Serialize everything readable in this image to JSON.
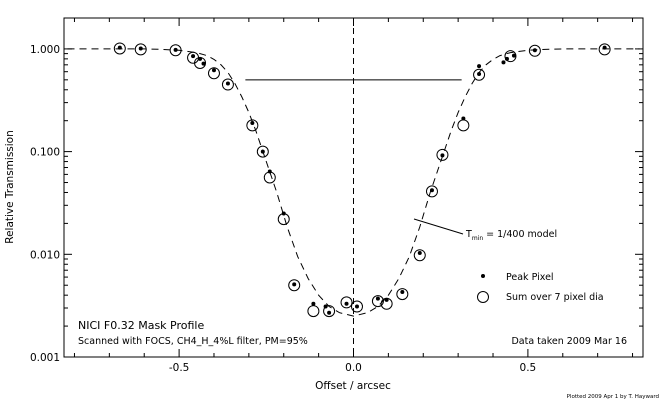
{
  "chart_data": {
    "type": "scatter",
    "title": "NICI F0.32 Mask Profile",
    "subtitle": "Scanned with FOCS, CH4_H_4%L filter, PM=95%",
    "note": "Data taken 2009 Mar 16",
    "credit": "Plotted 2009 Apr  1 by T. Hayward",
    "xlabel": "Offset / arcsec",
    "ylabel": "Relative Transmission",
    "xlim": [
      -0.83,
      0.83
    ],
    "ylim": [
      0.001,
      2.0
    ],
    "yscale": "log",
    "grid": false,
    "x_ticks": [
      {
        "value": -0.5,
        "label": "-0.5"
      },
      {
        "value": 0.0,
        "label": "0.0"
      },
      {
        "value": 0.5,
        "label": "0.5"
      }
    ],
    "y_ticks": [
      {
        "value": 1.0,
        "label": "1.000"
      },
      {
        "value": 0.1,
        "label": "0.100"
      },
      {
        "value": 0.01,
        "label": "0.010"
      },
      {
        "value": 0.001,
        "label": "0.001"
      }
    ],
    "legend": {
      "placement": "bottom-right",
      "entries": [
        {
          "name": "Peak Pixel",
          "marker": "dot"
        },
        {
          "name": "Sum over 7 pixel dia",
          "marker": "open-circle"
        }
      ]
    },
    "model_annotation": {
      "prefix": "T",
      "subscript": "min",
      "suffix": " = 1/400 model",
      "points_to": [
        0.33,
        0.02
      ]
    },
    "reference_lines": {
      "vertical_x": 0.0,
      "half_transmission_y": 0.5,
      "half_transmission_x_range": [
        -0.31,
        0.31
      ]
    },
    "series": [
      {
        "name": "Peak Pixel",
        "marker": "dot",
        "x": [
          -0.67,
          -0.61,
          -0.51,
          -0.46,
          -0.44,
          -0.43,
          -0.4,
          -0.36,
          -0.29,
          -0.26,
          -0.24,
          -0.2,
          -0.17,
          -0.115,
          -0.08,
          -0.07,
          -0.02,
          0.01,
          0.07,
          0.095,
          0.14,
          0.19,
          0.225,
          0.255,
          0.315,
          0.36,
          0.36,
          0.43,
          0.44,
          0.46,
          0.52,
          0.72
        ],
        "y": [
          1.03,
          1.01,
          0.98,
          0.85,
          0.8,
          0.72,
          0.62,
          0.46,
          0.19,
          0.1,
          0.064,
          0.025,
          0.0051,
          0.0033,
          0.0031,
          0.0027,
          0.0033,
          0.0031,
          0.0037,
          0.0036,
          0.0043,
          0.0103,
          0.042,
          0.092,
          0.21,
          0.57,
          0.68,
          0.74,
          0.8,
          0.86,
          0.97,
          1.03
        ]
      },
      {
        "name": "Sum over 7 pixel dia",
        "marker": "open-circle",
        "x": [
          -0.67,
          -0.61,
          -0.51,
          -0.46,
          -0.44,
          -0.4,
          -0.36,
          -0.29,
          -0.26,
          -0.24,
          -0.2,
          -0.17,
          -0.115,
          -0.07,
          -0.02,
          0.01,
          0.07,
          0.095,
          0.14,
          0.19,
          0.225,
          0.255,
          0.315,
          0.36,
          0.45,
          0.52,
          0.72
        ],
        "y": [
          1.01,
          0.99,
          0.97,
          0.82,
          0.73,
          0.58,
          0.45,
          0.18,
          0.1,
          0.056,
          0.022,
          0.005,
          0.0028,
          0.0028,
          0.0034,
          0.0031,
          0.0035,
          0.0033,
          0.0041,
          0.0098,
          0.041,
          0.093,
          0.18,
          0.56,
          0.85,
          0.96,
          0.99
        ]
      },
      {
        "name": "model",
        "style": "dashed",
        "x": [
          -0.82,
          -0.7,
          -0.6,
          -0.55,
          -0.5,
          -0.45,
          -0.42,
          -0.4,
          -0.38,
          -0.36,
          -0.34,
          -0.32,
          -0.3,
          -0.28,
          -0.25,
          -0.22,
          -0.19,
          -0.16,
          -0.13,
          -0.1,
          -0.07,
          -0.04,
          0.0,
          0.04,
          0.07,
          0.1,
          0.13,
          0.16,
          0.19,
          0.22,
          0.25,
          0.28,
          0.3,
          0.32,
          0.34,
          0.36,
          0.38,
          0.4,
          0.42,
          0.45,
          0.5,
          0.55,
          0.6,
          0.7,
          0.82
        ],
        "y": [
          1.0,
          1.0,
          1.0,
          0.99,
          0.97,
          0.92,
          0.86,
          0.79,
          0.7,
          0.59,
          0.46,
          0.34,
          0.24,
          0.16,
          0.08,
          0.04,
          0.0185,
          0.0095,
          0.0058,
          0.004,
          0.0031,
          0.0027,
          0.0025,
          0.0027,
          0.0031,
          0.004,
          0.0058,
          0.0095,
          0.0185,
          0.04,
          0.08,
          0.16,
          0.24,
          0.34,
          0.46,
          0.59,
          0.7,
          0.79,
          0.86,
          0.92,
          0.97,
          0.99,
          1.0,
          1.0,
          1.0
        ]
      }
    ]
  }
}
